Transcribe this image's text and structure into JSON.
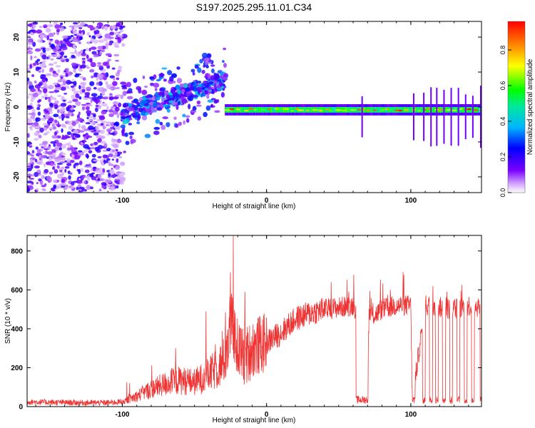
{
  "figure_title": "S197.2025.295.11.01.C34",
  "chart_data": [
    {
      "type": "heatmap",
      "title": "S197.2025.295.11.01.C34",
      "xlabel": "Height of straight line (km)",
      "ylabel": "Frequency (Hz)",
      "xlim": [
        -166,
        149
      ],
      "ylim": [
        -24.5,
        24.5
      ],
      "xticks": [
        -100,
        0,
        100
      ],
      "yticks": [
        -20,
        -10,
        0,
        10,
        20
      ],
      "xtick_labels": [
        "-100",
        "0",
        "100"
      ],
      "ytick_labels": [
        "-20",
        "-10",
        "0",
        "10",
        "20"
      ],
      "colorbar": {
        "label": "Normalized spectral amplitude",
        "range": [
          0.0,
          0.96
        ],
        "ticks": [
          0.0,
          0.2,
          0.4,
          0.6,
          0.8
        ],
        "tick_labels": [
          "0.0",
          "0.2",
          "0.4",
          "0.6",
          "0.8"
        ],
        "colormap": "rainbow"
      },
      "regions": [
        {
          "name": "diffuse noise",
          "x_range": [
            -166,
            -100
          ],
          "freq_range": [
            -24,
            24
          ],
          "amplitude": 0.15
        },
        {
          "name": "scattered rising signal",
          "x_range": [
            -100,
            -28
          ],
          "freq_start": -2,
          "freq_end": 8,
          "amplitude": 0.35
        },
        {
          "name": "main carrier line",
          "x_range": [
            -35,
            149
          ],
          "freq": -0.8,
          "amplitude": 0.9
        }
      ]
    },
    {
      "type": "line",
      "xlabel": "Height of straight line (km)",
      "ylabel": "SNR (10 * v/v)",
      "xlim": [
        -166,
        149
      ],
      "ylim": [
        0,
        880
      ],
      "xticks": [
        -100,
        0,
        100
      ],
      "yticks": [
        0,
        200,
        400,
        600,
        800
      ],
      "xtick_labels": [
        "-100",
        "0",
        "100"
      ],
      "ytick_labels": [
        "0",
        "200",
        "400",
        "600",
        "800"
      ],
      "color": "#ee3333",
      "series": [
        {
          "name": "SNR",
          "x": [
            -166,
            -150,
            -130,
            -110,
            -100,
            -90,
            -80,
            -70,
            -60,
            -50,
            -40,
            -30,
            -25,
            -20,
            -15,
            -10,
            0,
            10,
            20,
            30,
            40,
            50,
            60,
            62,
            62.5,
            70,
            71,
            75,
            80,
            90,
            100,
            101,
            110,
            120,
            130,
            140,
            149
          ],
          "y": [
            25,
            22,
            20,
            20,
            25,
            60,
            100,
            130,
            150,
            140,
            180,
            250,
            450,
            300,
            250,
            300,
            330,
            380,
            450,
            480,
            500,
            510,
            520,
            500,
            30,
            40,
            480,
            470,
            500,
            520,
            520,
            30,
            520,
            510,
            500,
            520,
            510
          ]
        }
      ],
      "dropouts": [
        [
          62,
          70.5
        ],
        [
          101,
          103
        ],
        [
          108,
          110
        ],
        [
          113,
          115
        ],
        [
          117,
          119
        ],
        [
          122,
          124
        ],
        [
          127,
          129
        ],
        [
          132,
          134
        ],
        [
          137,
          139
        ],
        [
          142,
          144
        ],
        [
          148,
          149
        ]
      ],
      "spikes": [
        [
          -23,
          880
        ],
        [
          -25,
          690
        ],
        [
          -15,
          590
        ],
        [
          -63,
          300
        ],
        [
          -42,
          490
        ]
      ]
    }
  ]
}
